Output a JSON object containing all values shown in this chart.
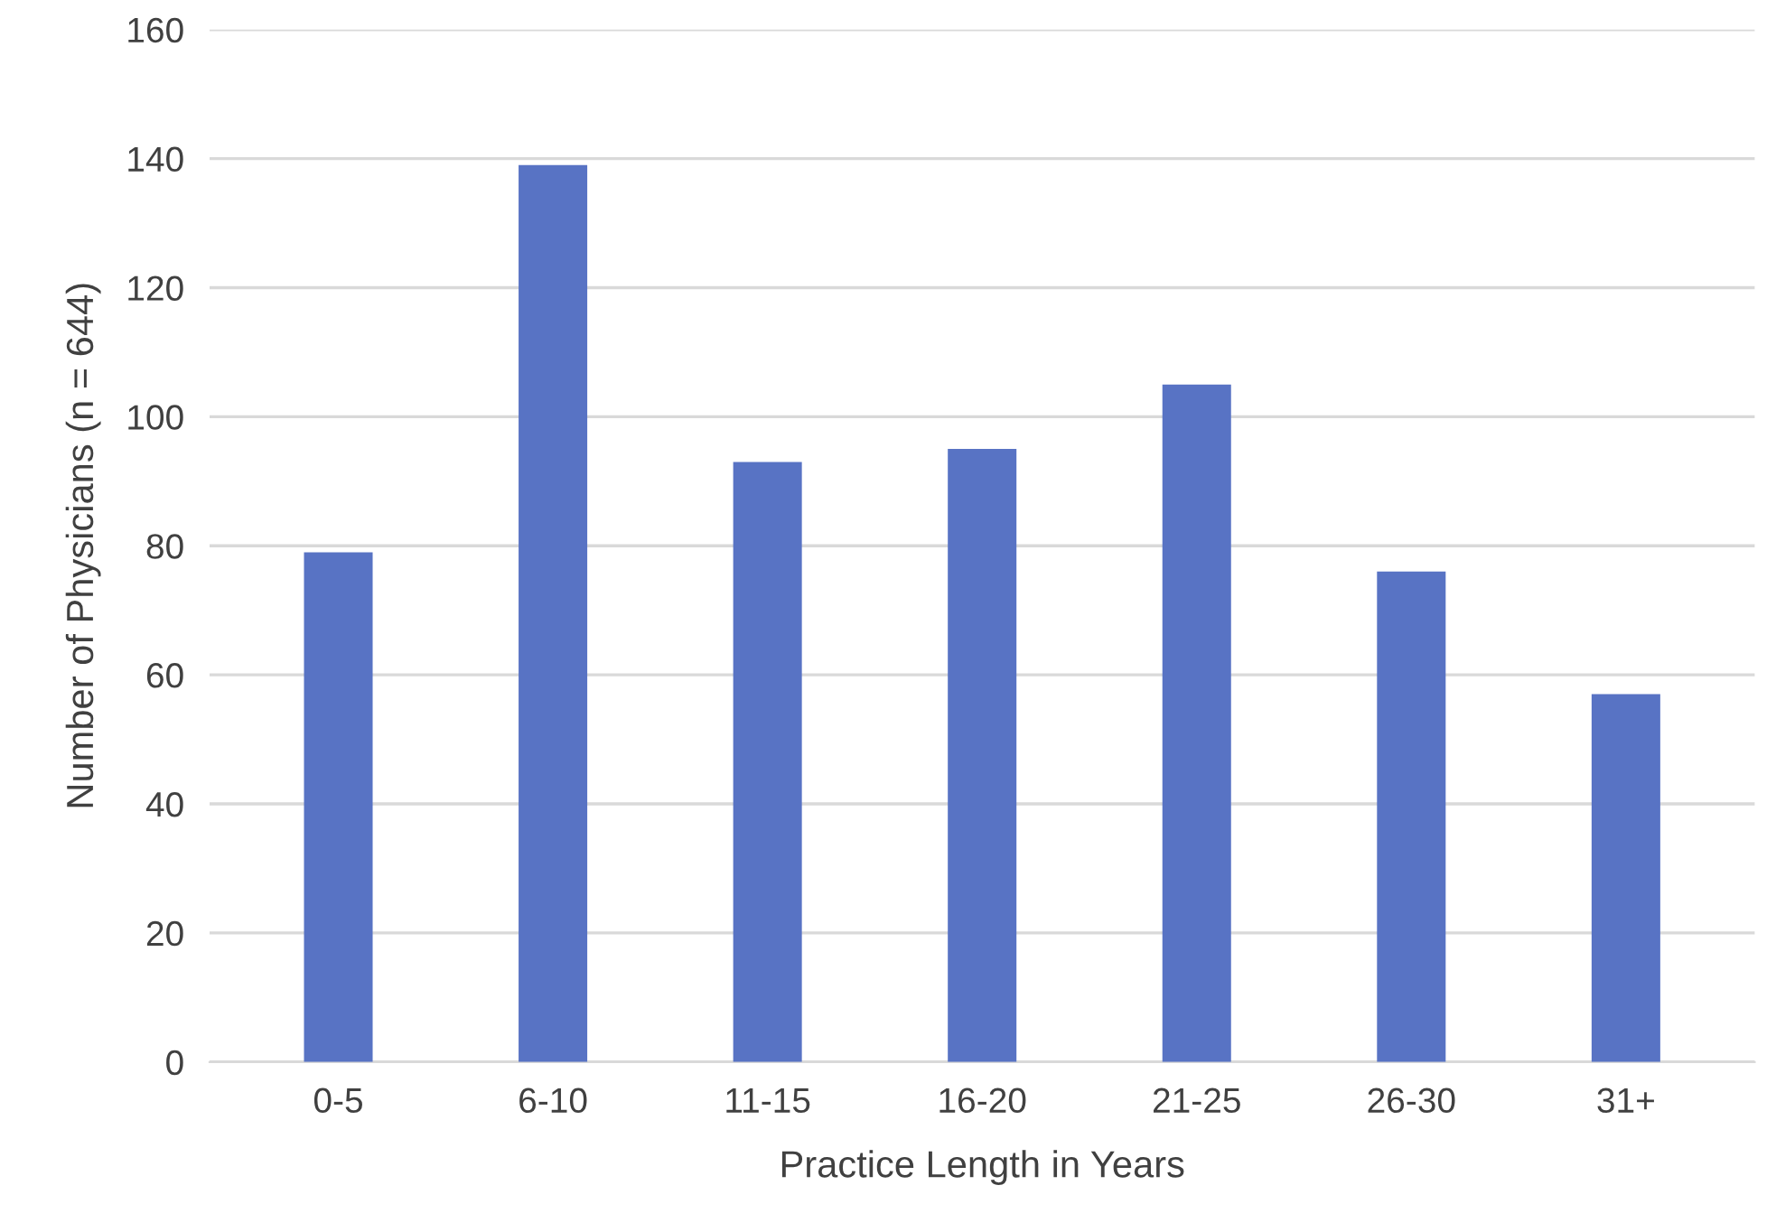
{
  "chart_data": {
    "type": "bar",
    "xlabel": "Practice Length in Years",
    "ylabel": "Number of Physicians (n = 644)",
    "categories": [
      "0-5",
      "6-10",
      "11-15",
      "16-20",
      "21-25",
      "26-30",
      "31+"
    ],
    "values": [
      79,
      139,
      93,
      95,
      105,
      76,
      57
    ],
    "color": "#5873c4",
    "ylim": [
      0,
      160
    ],
    "yticks": [
      0,
      20,
      40,
      60,
      80,
      100,
      120,
      140,
      160
    ],
    "grid": "y",
    "legend": false
  }
}
